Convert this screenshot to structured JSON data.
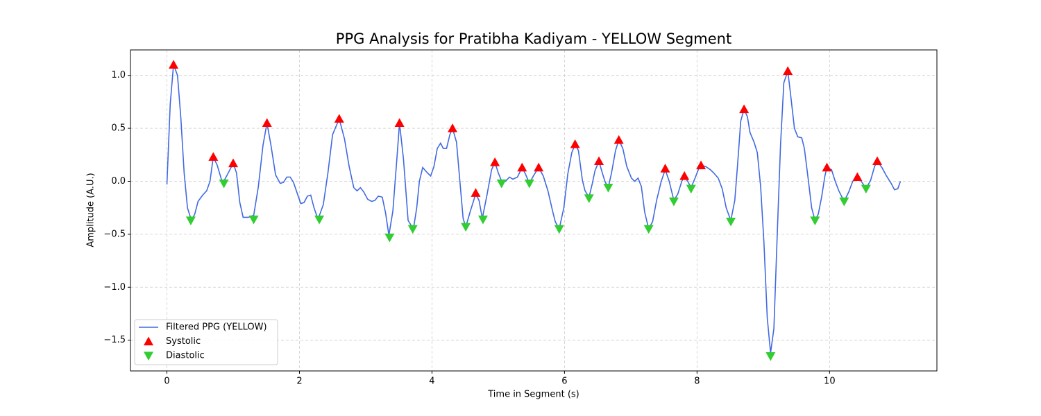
{
  "chart_data": {
    "type": "line",
    "title": "PPG Analysis for Pratibha Kadiyam - YELLOW Segment",
    "xlabel": "Time in Segment (s)",
    "ylabel": "Amplitude (A.U.)",
    "xlim": [
      -0.55,
      11.62
    ],
    "ylim": [
      -1.79,
      1.24
    ],
    "xticks": [
      0,
      2,
      4,
      6,
      8,
      10
    ],
    "yticks": [
      {
        "value": -1.5,
        "label": "−1.5"
      },
      {
        "value": -1.0,
        "label": "−1.0"
      },
      {
        "value": -0.5,
        "label": "−0.5"
      },
      {
        "value": 0.0,
        "label": "0.0"
      },
      {
        "value": 0.5,
        "label": "0.5"
      },
      {
        "value": 1.0,
        "label": "1.0"
      }
    ],
    "grid": true,
    "legend": "lower left",
    "series": [
      {
        "name": "Filtered PPG (YELLOW)",
        "kind": "line",
        "color": "#4169e1",
        "x": [
          0,
          0.05,
          0.1,
          0.16,
          0.21,
          0.26,
          0.31,
          0.37,
          0.42,
          0.47,
          0.54,
          0.6,
          0.65,
          0.7,
          0.76,
          0.84,
          0.91,
          1.0,
          1.05,
          1.1,
          1.15,
          1.23,
          1.31,
          1.38,
          1.45,
          1.51,
          1.57,
          1.64,
          1.71,
          1.76,
          1.81,
          1.86,
          1.91,
          1.97,
          2.02,
          2.07,
          2.12,
          2.17,
          2.22,
          2.28,
          2.36,
          2.43,
          2.5,
          2.6,
          2.68,
          2.75,
          2.82,
          2.87,
          2.92,
          2.97,
          3.03,
          3.09,
          3.14,
          3.19,
          3.25,
          3.3,
          3.35,
          3.41,
          3.47,
          3.51,
          3.57,
          3.64,
          3.72,
          3.77,
          3.81,
          3.86,
          3.93,
          3.98,
          4.03,
          4.08,
          4.13,
          4.17,
          4.22,
          4.27,
          4.31,
          4.37,
          4.42,
          4.47,
          4.51,
          4.58,
          4.66,
          4.71,
          4.76,
          4.83,
          4.9,
          4.95,
          5.0,
          5.06,
          5.11,
          5.17,
          5.22,
          5.29,
          5.36,
          5.41,
          5.47,
          5.53,
          5.61,
          5.68,
          5.75,
          5.82,
          5.86,
          5.92,
          5.99,
          6.05,
          6.11,
          6.16,
          6.21,
          6.27,
          6.31,
          6.37,
          6.42,
          6.46,
          6.52,
          6.57,
          6.61,
          6.66,
          6.71,
          6.77,
          6.82,
          6.88,
          6.94,
          7.01,
          7.06,
          7.11,
          7.16,
          7.21,
          7.27,
          7.33,
          7.39,
          7.46,
          7.52,
          7.58,
          7.65,
          7.71,
          7.77,
          7.81,
          7.86,
          7.91,
          7.97,
          8.02,
          8.06,
          8.13,
          8.2,
          8.25,
          8.32,
          8.38,
          8.44,
          8.51,
          8.57,
          8.61,
          8.66,
          8.71,
          8.76,
          8.8,
          8.86,
          8.91,
          8.96,
          9.01,
          9.06,
          9.11,
          9.16,
          9.21,
          9.26,
          9.31,
          9.37,
          9.41,
          9.47,
          9.52,
          9.58,
          9.62,
          9.68,
          9.73,
          9.78,
          9.83,
          9.88,
          9.93,
          9.96,
          10.03,
          10.08,
          10.14,
          10.22,
          10.29,
          10.35,
          10.42,
          10.48,
          10.55,
          10.62,
          10.68,
          10.72,
          10.79,
          10.86,
          10.93,
          10.98,
          11.03,
          11.07
        ],
        "values": [
          -0.03,
          0.73,
          1.1,
          1.0,
          0.6,
          0.08,
          -0.25,
          -0.37,
          -0.31,
          -0.19,
          -0.13,
          -0.09,
          0.0,
          0.23,
          0.15,
          -0.02,
          0.06,
          0.17,
          0.08,
          -0.2,
          -0.34,
          -0.34,
          -0.32,
          -0.05,
          0.34,
          0.55,
          0.34,
          0.06,
          -0.02,
          -0.01,
          0.04,
          0.04,
          -0.01,
          -0.12,
          -0.21,
          -0.2,
          -0.14,
          -0.13,
          -0.25,
          -0.36,
          -0.22,
          0.08,
          0.44,
          0.59,
          0.4,
          0.14,
          -0.06,
          -0.09,
          -0.06,
          -0.1,
          -0.17,
          -0.19,
          -0.18,
          -0.14,
          -0.15,
          -0.3,
          -0.51,
          -0.28,
          0.21,
          0.55,
          0.21,
          -0.37,
          -0.45,
          -0.25,
          0.0,
          0.13,
          0.08,
          0.05,
          0.14,
          0.31,
          0.36,
          0.31,
          0.31,
          0.44,
          0.5,
          0.37,
          0.01,
          -0.35,
          -0.43,
          -0.28,
          -0.12,
          -0.18,
          -0.35,
          -0.13,
          0.11,
          0.18,
          0.08,
          -0.01,
          0.0,
          0.04,
          0.02,
          0.04,
          0.13,
          0.07,
          -0.02,
          0.05,
          0.13,
          0.05,
          -0.09,
          -0.28,
          -0.38,
          -0.45,
          -0.25,
          0.07,
          0.27,
          0.35,
          0.29,
          0.01,
          -0.09,
          -0.15,
          -0.02,
          0.1,
          0.19,
          0.08,
          0.0,
          -0.06,
          0.08,
          0.29,
          0.39,
          0.31,
          0.14,
          0.03,
          0.0,
          0.03,
          -0.05,
          -0.29,
          -0.45,
          -0.38,
          -0.18,
          0.0,
          0.11,
          0.0,
          -0.18,
          -0.12,
          0.0,
          0.04,
          0.0,
          -0.06,
          0.03,
          0.11,
          0.15,
          0.14,
          0.11,
          0.08,
          0.03,
          -0.07,
          -0.25,
          -0.37,
          -0.18,
          0.14,
          0.57,
          0.68,
          0.61,
          0.46,
          0.37,
          0.27,
          -0.05,
          -0.58,
          -1.29,
          -1.62,
          -1.39,
          -0.51,
          0.34,
          0.93,
          1.04,
          0.83,
          0.5,
          0.42,
          0.41,
          0.31,
          0.01,
          -0.25,
          -0.37,
          -0.31,
          -0.15,
          0.05,
          0.13,
          0.11,
          0.01,
          -0.09,
          -0.19,
          -0.1,
          0.0,
          0.03,
          0.0,
          -0.07,
          0.01,
          0.14,
          0.19,
          0.13,
          0.05,
          -0.02,
          -0.08,
          -0.07,
          0.0
        ]
      },
      {
        "name": "Systolic",
        "kind": "scatter",
        "marker": "up",
        "color": "#ff0000",
        "x": [
          0.1,
          0.7,
          1.0,
          1.51,
          2.6,
          3.51,
          4.31,
          4.66,
          4.95,
          5.36,
          5.61,
          6.16,
          6.52,
          6.82,
          7.52,
          7.81,
          8.06,
          8.71,
          9.37,
          9.96,
          10.42,
          10.72
        ],
        "values": [
          1.1,
          0.23,
          0.17,
          0.55,
          0.59,
          0.55,
          0.5,
          -0.11,
          0.18,
          0.13,
          0.13,
          0.35,
          0.19,
          0.39,
          0.12,
          0.05,
          0.15,
          0.68,
          1.04,
          0.13,
          0.04,
          0.19
        ]
      },
      {
        "name": "Diastolic",
        "kind": "scatter",
        "marker": "down",
        "color": "#32cd32",
        "x": [
          0.36,
          0.86,
          1.31,
          2.3,
          3.36,
          3.71,
          4.51,
          4.77,
          5.05,
          5.47,
          5.92,
          6.37,
          6.66,
          7.27,
          7.65,
          7.91,
          8.51,
          9.11,
          9.78,
          10.22,
          10.55
        ],
        "values": [
          -0.37,
          -0.02,
          -0.36,
          -0.36,
          -0.53,
          -0.45,
          -0.43,
          -0.36,
          -0.02,
          -0.02,
          -0.45,
          -0.16,
          -0.06,
          -0.45,
          -0.19,
          -0.07,
          -0.38,
          -1.65,
          -0.37,
          -0.19,
          -0.07
        ]
      }
    ]
  }
}
